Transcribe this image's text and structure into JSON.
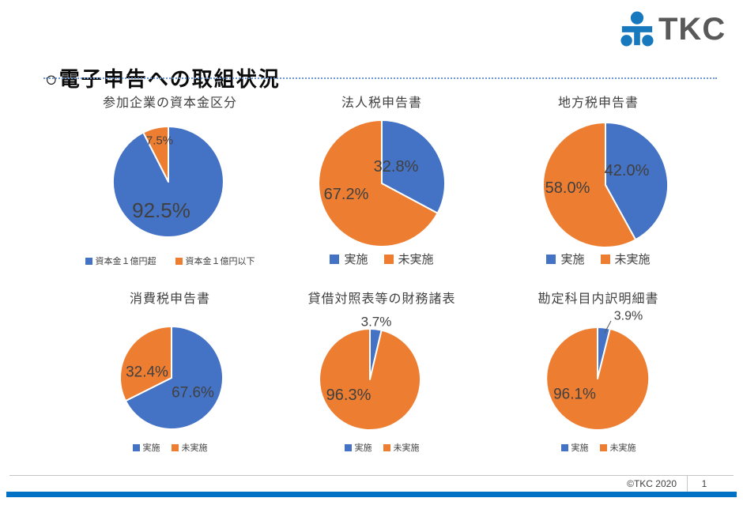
{
  "header": {
    "title": "○電子申告への取組状況",
    "logo_text": "TKC"
  },
  "footer": {
    "copyright": "©TKC 2020",
    "page_number": "1"
  },
  "colors": {
    "series_implemented_blue": "#4472C4",
    "series_not_implemented_orange": "#ED7D31",
    "data_label": "#404040",
    "chart_title": "#404040",
    "leader_line": "#595959",
    "bottom_bar_blue": "#0072C6",
    "logo_mark_blue": "#1878BE",
    "logo_text_gray": "#595959",
    "title_underline_blue": "#6F96D1"
  },
  "chart_data": [
    {
      "type": "pie",
      "title": "参加企業の資本金区分",
      "legend_position": "bottom",
      "slices": [
        {
          "label": "資本金１億円超",
          "value": 92.5,
          "display": "92.5%",
          "color": "#4472C4"
        },
        {
          "label": "資本金１億円以下",
          "value": 7.5,
          "display": "7.5%",
          "color": "#ED7D31"
        }
      ]
    },
    {
      "type": "pie",
      "title": "法人税申告書",
      "legend_position": "bottom",
      "slices": [
        {
          "label": "実施",
          "value": 32.8,
          "display": "32.8%",
          "color": "#4472C4"
        },
        {
          "label": "未実施",
          "value": 67.2,
          "display": "67.2%",
          "color": "#ED7D31"
        }
      ]
    },
    {
      "type": "pie",
      "title": "地方税申告書",
      "legend_position": "bottom",
      "slices": [
        {
          "label": "実施",
          "value": 42.0,
          "display": "42.0%",
          "color": "#4472C4"
        },
        {
          "label": "未実施",
          "value": 58.0,
          "display": "58.0%",
          "color": "#ED7D31"
        }
      ]
    },
    {
      "type": "pie",
      "title": "消費税申告書",
      "legend_position": "bottom",
      "slices": [
        {
          "label": "実施",
          "value": 67.6,
          "display": "67.6%",
          "color": "#4472C4"
        },
        {
          "label": "未実施",
          "value": 32.4,
          "display": "32.4%",
          "color": "#ED7D31"
        }
      ]
    },
    {
      "type": "pie",
      "title": "貸借対照表等の財務諸表",
      "legend_position": "bottom",
      "slices": [
        {
          "label": "実施",
          "value": 3.7,
          "display": "3.7%",
          "color": "#4472C4"
        },
        {
          "label": "未実施",
          "value": 96.3,
          "display": "96.3%",
          "color": "#ED7D31"
        }
      ]
    },
    {
      "type": "pie",
      "title": "勘定科目内訳明細書",
      "legend_position": "bottom",
      "slices": [
        {
          "label": "実施",
          "value": 3.9,
          "display": "3.9%",
          "color": "#4472C4"
        },
        {
          "label": "未実施",
          "value": 96.1,
          "display": "96.1%",
          "color": "#ED7D31"
        }
      ]
    }
  ]
}
